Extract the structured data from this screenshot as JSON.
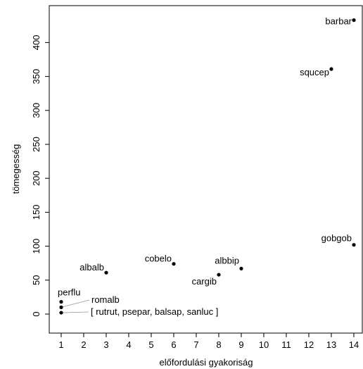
{
  "chart_data": {
    "type": "scatter",
    "title": "",
    "xlabel": "előfordulási gyakoriság",
    "ylabel": "tömegesség",
    "xlim": [
      1,
      14
    ],
    "ylim": [
      0,
      430
    ],
    "xticks": [
      "1",
      "2",
      "3",
      "4",
      "5",
      "6",
      "7",
      "8",
      "9",
      "10",
      "11",
      "12",
      "13",
      "14"
    ],
    "yticks": [
      "0",
      "50",
      "100",
      "150",
      "200",
      "250",
      "300",
      "350",
      "400"
    ],
    "grid": false,
    "legend": "none",
    "point_color": "#000000",
    "points": [
      {
        "label": "barbar",
        "x": 14,
        "y": 433
      },
      {
        "label": "squcep",
        "x": 13,
        "y": 361
      },
      {
        "label": "gobgob",
        "x": 14,
        "y": 102
      },
      {
        "label": "cobelo",
        "x": 6,
        "y": 74
      },
      {
        "label": "albbip",
        "x": 9,
        "y": 67
      },
      {
        "label": "albalb",
        "x": 3,
        "y": 61
      },
      {
        "label": "cargib",
        "x": 8,
        "y": 58
      },
      {
        "label": "perflu",
        "x": 1,
        "y": 18
      },
      {
        "label": "romalb",
        "x": 1,
        "y": 10
      },
      {
        "label": "[ rutrut, psepar, balsap, sanluc ]",
        "x": 1,
        "y": 2
      }
    ]
  }
}
